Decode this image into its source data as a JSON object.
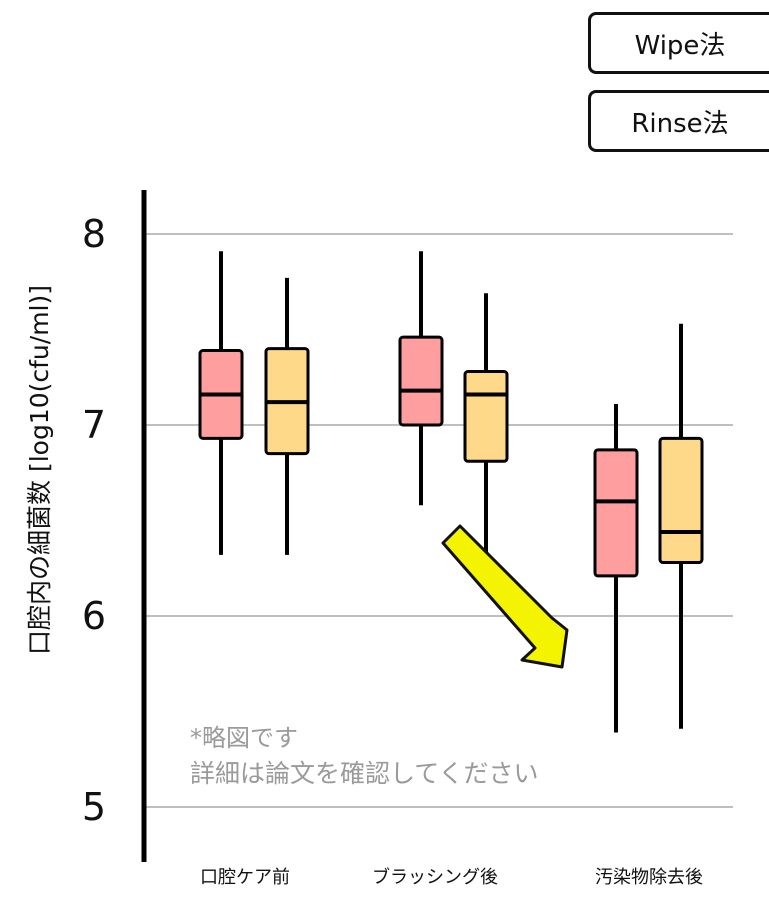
{
  "colors": {
    "wipe": "#ff9e9e",
    "rinse": "#ffd98a",
    "arrow": "#f4f400",
    "grid": "#aaaaaa",
    "note": "#9a9a9a"
  },
  "legend": {
    "wipe": "Wipe法",
    "rinse": "Rinse法"
  },
  "note": {
    "line1": "*略図です",
    "line2": "詳細は論文を確認してください"
  },
  "chart_data": {
    "type": "box",
    "title": "",
    "ylabel": "口腔内の細菌数 [log10(cfu/ml)]",
    "xlabel": "",
    "categories": [
      "口腔ケア前",
      "ブラッシング後",
      "汚染物除去後"
    ],
    "ylim": [
      4.7,
      8.2
    ],
    "yticks": [
      5,
      6,
      7,
      8
    ],
    "grid": true,
    "legend_position": "top-right",
    "series": [
      {
        "name": "Wipe法",
        "color": "#ff9e9e",
        "boxes": [
          {
            "min": 6.32,
            "q1": 6.93,
            "median": 7.16,
            "q3": 7.39,
            "max": 7.91
          },
          {
            "min": 6.58,
            "q1": 7.0,
            "median": 7.18,
            "q3": 7.46,
            "max": 7.91
          },
          {
            "min": 5.39,
            "q1": 6.21,
            "median": 6.6,
            "q3": 6.87,
            "max": 7.11
          }
        ]
      },
      {
        "name": "Rinse法",
        "color": "#ffd98a",
        "boxes": [
          {
            "min": 6.32,
            "q1": 6.85,
            "median": 7.12,
            "q3": 7.4,
            "max": 7.77
          },
          {
            "min": 6.15,
            "q1": 6.81,
            "median": 7.16,
            "q3": 7.28,
            "max": 7.69
          },
          {
            "min": 5.41,
            "q1": 6.28,
            "median": 6.44,
            "q3": 6.93,
            "max": 7.53
          }
        ]
      }
    ]
  }
}
